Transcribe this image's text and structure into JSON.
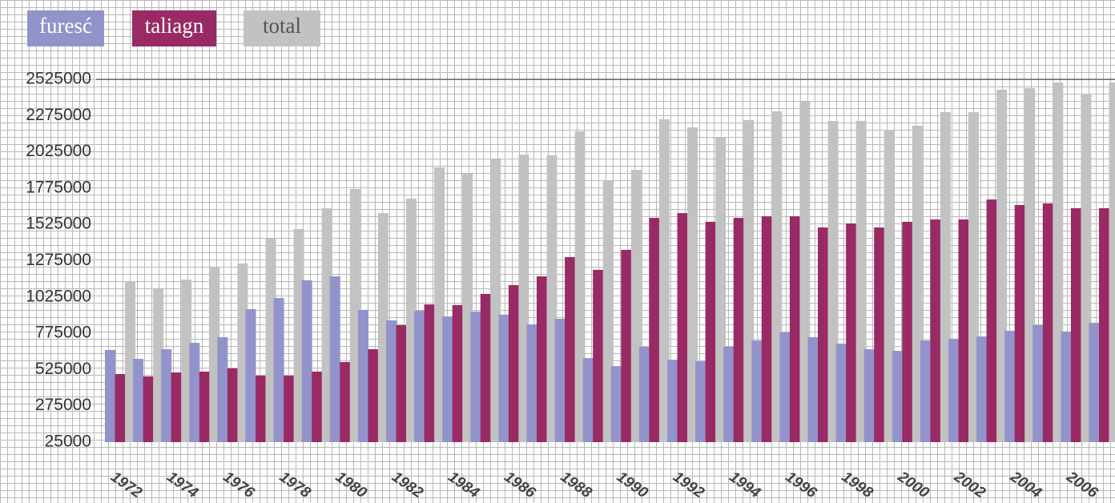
{
  "chart_data": {
    "type": "bar",
    "categories": [
      "1972",
      null,
      "1974",
      null,
      "1976",
      null,
      "1978",
      null,
      "1980",
      null,
      "1982",
      null,
      "1984",
      null,
      "1986",
      null,
      "1988",
      null,
      "1990",
      null,
      "1992",
      null,
      "1994",
      null,
      "1996",
      null,
      "1998",
      null,
      "2000",
      null,
      "2002",
      null,
      "2004",
      null,
      "2006",
      null
    ],
    "series": [
      {
        "name": "furesć",
        "color": "#9393cb",
        "values": [
          660000,
          599000,
          665000,
          709000,
          748000,
          941000,
          1018000,
          1140000,
          1167000,
          936000,
          864000,
          930000,
          891000,
          925000,
          903000,
          836000,
          875000,
          604000,
          549000,
          682000,
          593000,
          582000,
          682000,
          726000,
          781000,
          748000,
          704000,
          665000,
          654000,
          726000,
          737000,
          753000,
          792000,
          831000,
          787000,
          847000
        ]
      },
      {
        "name": "taliagn",
        "color": "#992a64",
        "values": [
          494000,
          478000,
          505000,
          511000,
          533000,
          483000,
          483000,
          511000,
          577000,
          665000,
          831000,
          974000,
          969000,
          1046000,
          1107000,
          1167000,
          1300000,
          1212000,
          1350000,
          1570000,
          1603000,
          1543000,
          1570000,
          1581000,
          1581000,
          1504000,
          1532000,
          1504000,
          1543000,
          1559000,
          1559000,
          1697000,
          1659000,
          1670000,
          1637000,
          1637000
        ]
      },
      {
        "name": "total",
        "color": "#c2c2c2",
        "values": [
          1134000,
          1079000,
          1145000,
          1228000,
          1256000,
          1427000,
          1493000,
          1637000,
          1769000,
          1603000,
          1703000,
          1918000,
          1874000,
          1973000,
          2006000,
          2001000,
          2166000,
          1830000,
          1901000,
          2249000,
          2194000,
          2122000,
          2244000,
          2304000,
          2371000,
          2238000,
          2238000,
          2177000,
          2205000,
          2299000,
          2299000,
          2453000,
          2464000,
          2503000,
          2426000,
          2503000
        ]
      }
    ],
    "ylim": [
      25000,
      2525000
    ],
    "yticks": [
      25000,
      275000,
      525000,
      775000,
      1025000,
      1275000,
      1525000,
      1775000,
      2025000,
      2275000,
      2525000
    ]
  }
}
